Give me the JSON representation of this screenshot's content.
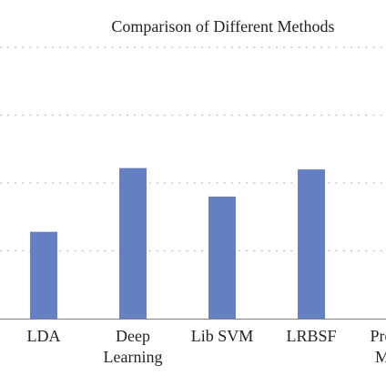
{
  "chart_data": {
    "type": "bar",
    "title": "Comparison of Different Methods",
    "categories": [
      [
        "LDA"
      ],
      [
        "Deep",
        "Learning"
      ],
      [
        "Lib SVM"
      ],
      [
        "LRBSF"
      ],
      [
        "Proposed",
        "Method"
      ]
    ],
    "values": [
      0.64,
      1.11,
      0.9,
      1.1,
      null
    ],
    "xlabel": "",
    "ylabel": "",
    "ylim": [
      0,
      2
    ],
    "yticks": [
      0.5,
      1.0,
      1.5,
      2.0
    ],
    "grid": true,
    "bar_color": "#6580c2"
  }
}
